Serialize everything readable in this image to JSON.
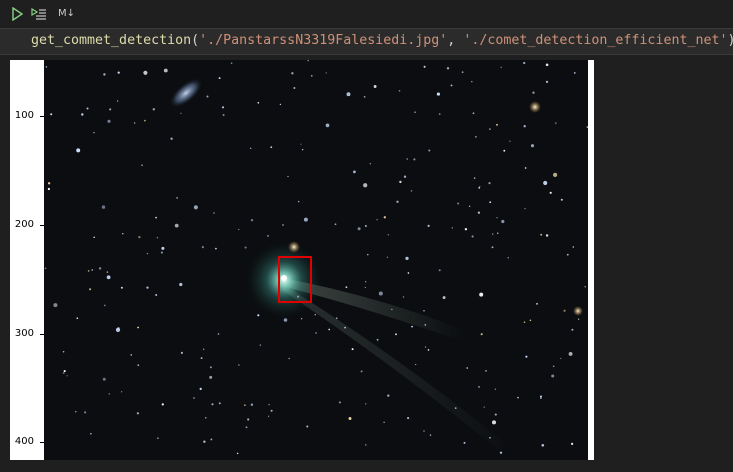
{
  "toolbar": {
    "run_icon": "run-cell-icon",
    "run_below_icon": "run-below-icon",
    "cell_type_label": "M↓"
  },
  "cell": {
    "function_name": "get_commet_detection",
    "open_paren": "(",
    "arg1": "'./PanstarssN3319Falesiedi.jpg'",
    "separator": ", ",
    "arg2": "'./comet_detection_efficient_net'",
    "close_paren": ")"
  },
  "output": {
    "y_ticks": [
      "100",
      "200",
      "300",
      "400"
    ],
    "detection_label": "comet",
    "box_color": "#e00000"
  }
}
